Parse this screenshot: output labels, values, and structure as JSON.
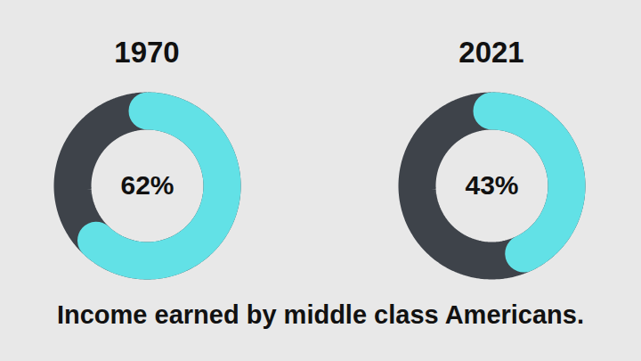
{
  "caption": "Income earned by middle class Americans.",
  "chart_data": [
    {
      "type": "donut",
      "title": "1970",
      "values": [
        62
      ],
      "value_labels": [
        "62%"
      ],
      "data_labels": true,
      "color": "#62e1e6",
      "ylim": [
        0,
        100
      ],
      "tick_labels": false
    },
    {
      "type": "donut",
      "title": "2021",
      "values": [
        43
      ],
      "value_labels": [
        "43%"
      ],
      "data_labels": true,
      "color": "#62e1e6",
      "ylim": [
        0,
        100
      ],
      "tick_labels": false
    }
  ]
}
